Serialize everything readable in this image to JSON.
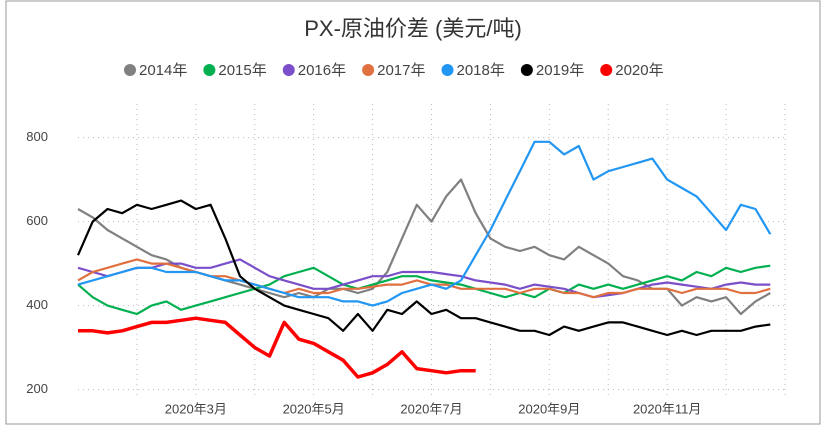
{
  "chart_data": {
    "type": "line",
    "title": "PX-原油价差 (美元/吨)",
    "categories": [
      null,
      null,
      null,
      null,
      null,
      null,
      null,
      null,
      "2020年3月",
      null,
      null,
      null,
      null,
      null,
      null,
      null,
      "2020年5月",
      null,
      null,
      null,
      null,
      null,
      null,
      null,
      "2020年7月",
      null,
      null,
      null,
      null,
      null,
      null,
      null,
      "2020年9月",
      null,
      null,
      null,
      null,
      null,
      null,
      null,
      "2020年11月",
      null,
      null,
      null,
      null,
      null,
      null,
      null
    ],
    "ylim": [
      180,
      880
    ],
    "yticks": [
      200,
      400,
      600,
      800
    ],
    "grid": true,
    "legend": "top",
    "series": [
      {
        "name": "2014年",
        "color": "#808080",
        "values": [
          630,
          610,
          580,
          560,
          540,
          520,
          510,
          490,
          480,
          470,
          460,
          450,
          440,
          430,
          420,
          430,
          420,
          440,
          440,
          430,
          440,
          480,
          560,
          640,
          600,
          660,
          700,
          620,
          560,
          540,
          530,
          540,
          520,
          510,
          540,
          520,
          500,
          470,
          460,
          440,
          440,
          400,
          420,
          410,
          420,
          380,
          410,
          430
        ]
      },
      {
        "name": "2015年",
        "color": "#00b050",
        "values": [
          450,
          420,
          400,
          390,
          380,
          400,
          410,
          390,
          400,
          410,
          420,
          430,
          440,
          450,
          470,
          480,
          490,
          470,
          450,
          440,
          450,
          460,
          470,
          470,
          460,
          455,
          450,
          440,
          430,
          420,
          430,
          420,
          440,
          430,
          450,
          440,
          450,
          440,
          450,
          460,
          470,
          460,
          480,
          470,
          490,
          480,
          490,
          495
        ]
      },
      {
        "name": "2016年",
        "color": "#7b4fc9",
        "values": [
          490,
          480,
          470,
          480,
          490,
          490,
          500,
          500,
          490,
          490,
          500,
          510,
          490,
          470,
          460,
          450,
          440,
          440,
          450,
          460,
          470,
          470,
          480,
          480,
          480,
          475,
          470,
          460,
          455,
          450,
          440,
          450,
          445,
          440,
          430,
          420,
          425,
          430,
          440,
          450,
          455,
          450,
          445,
          440,
          450,
          455,
          450,
          450
        ]
      },
      {
        "name": "2017年",
        "color": "#e07040",
        "values": [
          460,
          480,
          490,
          500,
          510,
          500,
          500,
          490,
          480,
          470,
          470,
          460,
          450,
          440,
          430,
          440,
          430,
          430,
          440,
          440,
          445,
          450,
          450,
          460,
          450,
          450,
          440,
          440,
          440,
          440,
          430,
          440,
          440,
          430,
          430,
          420,
          430,
          430,
          440,
          440,
          440,
          430,
          440,
          440,
          440,
          430,
          430,
          440
        ]
      },
      {
        "name": "2018年",
        "color": "#2196f3",
        "values": [
          450,
          460,
          470,
          480,
          490,
          490,
          480,
          480,
          480,
          470,
          460,
          460,
          450,
          440,
          430,
          420,
          420,
          420,
          410,
          410,
          400,
          410,
          430,
          440,
          450,
          440,
          460,
          520,
          580,
          650,
          720,
          790,
          790,
          760,
          780,
          700,
          720,
          730,
          740,
          750,
          700,
          680,
          660,
          620,
          580,
          640,
          630,
          570
        ]
      },
      {
        "name": "2019年",
        "color": "#000000",
        "values": [
          520,
          600,
          630,
          620,
          640,
          630,
          640,
          650,
          630,
          640,
          560,
          470,
          440,
          420,
          400,
          390,
          380,
          370,
          340,
          380,
          340,
          390,
          380,
          410,
          380,
          390,
          370,
          370,
          360,
          350,
          340,
          340,
          330,
          350,
          340,
          350,
          360,
          360,
          350,
          340,
          330,
          340,
          330,
          340,
          340,
          340,
          350,
          355
        ]
      },
      {
        "name": "2020年",
        "color": "#ff0000",
        "values": [
          340,
          340,
          335,
          340,
          350,
          360,
          360,
          365,
          370,
          365,
          360,
          330,
          300,
          280,
          360,
          320,
          310,
          290,
          270,
          230,
          240,
          260,
          290,
          250,
          245,
          240,
          245,
          245,
          null,
          null,
          null,
          null,
          null,
          null,
          null,
          null,
          null,
          null,
          null,
          null,
          null,
          null,
          null,
          null,
          null,
          null,
          null,
          null
        ]
      }
    ]
  }
}
